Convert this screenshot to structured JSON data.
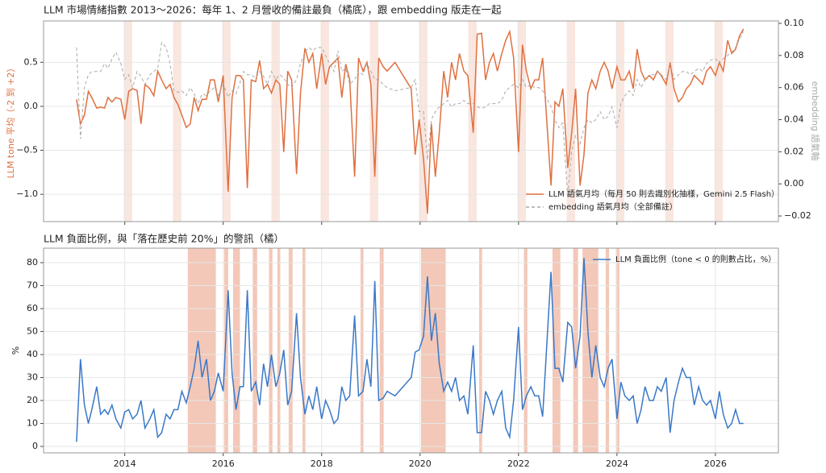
{
  "chart_data": [
    {
      "type": "line",
      "title": "LLM 市場情緒指數 2013～2026：每年 1、2 月營收的備註最負（橘底），跟 embedding 版走在一起",
      "ylabel": "LLM tone 平均（-2 到 +2）",
      "y2label": "embedding 語氣軸",
      "legend": "lower right",
      "grid": true,
      "span_color": "#f9e6df",
      "spans": [
        [
          2013.98,
          2014.15
        ],
        [
          2014.98,
          2015.15
        ],
        [
          2015.98,
          2016.15
        ],
        [
          2016.98,
          2017.15
        ],
        [
          2017.98,
          2018.15
        ],
        [
          2018.98,
          2019.15
        ],
        [
          2019.98,
          2020.15
        ],
        [
          2020.98,
          2021.15
        ],
        [
          2021.98,
          2022.15
        ],
        [
          2022.98,
          2023.15
        ],
        [
          2023.98,
          2024.15
        ],
        [
          2024.98,
          2025.15
        ],
        [
          2025.98,
          2026.15
        ]
      ],
      "xlim": [
        2012.35,
        2027.28
      ],
      "xticks": [
        2014,
        2016,
        2018,
        2020,
        2022,
        2024,
        2026
      ],
      "ylim": [
        -1.31,
        0.97
      ],
      "yticks": [
        {
          "value": -1,
          "label": "−1.0"
        },
        {
          "value": -0.5,
          "label": "−0.5"
        },
        {
          "value": 0,
          "label": "0.0"
        },
        {
          "value": 0.5,
          "label": "0.5"
        }
      ],
      "y2lim": [
        -0.0235,
        0.1015
      ],
      "y2ticks": [
        {
          "value": -0.02,
          "label": "−0.02"
        },
        {
          "value": 0,
          "label": "0.00"
        },
        {
          "value": 0.02,
          "label": "0.02"
        },
        {
          "value": 0.04,
          "label": "0.04"
        },
        {
          "value": 0.06,
          "label": "0.06"
        },
        {
          "value": 0.08,
          "label": "0.08"
        },
        {
          "value": 0.1,
          "label": "0.10"
        }
      ],
      "x": [
        2013.02,
        2013.1,
        2013.18,
        2013.26,
        2013.33,
        2013.43,
        2013.51,
        2013.59,
        2013.66,
        2013.74,
        2013.82,
        2013.92,
        2014.0,
        2014.08,
        2014.16,
        2014.25,
        2014.33,
        2014.41,
        2014.51,
        2014.59,
        2014.67,
        2014.75,
        2014.84,
        2014.92,
        2015.0,
        2015.08,
        2015.16,
        2015.25,
        2015.33,
        2015.41,
        2015.49,
        2015.57,
        2015.66,
        2015.74,
        2015.82,
        2015.9,
        2016.0,
        2016.1,
        2016.18,
        2016.26,
        2016.34,
        2016.41,
        2016.49,
        2016.57,
        2016.66,
        2016.74,
        2016.82,
        2016.9,
        2016.98,
        2017.07,
        2017.15,
        2017.23,
        2017.31,
        2017.39,
        2017.49,
        2017.57,
        2017.66,
        2017.74,
        2017.82,
        2017.9,
        2018.0,
        2018.08,
        2018.16,
        2018.25,
        2018.33,
        2018.41,
        2018.49,
        2018.57,
        2018.67,
        2018.75,
        2018.84,
        2018.92,
        2019.0,
        2019.08,
        2019.16,
        2019.25,
        2019.33,
        2019.49,
        2019.82,
        2019.9,
        2019.98,
        2020.07,
        2020.15,
        2020.23,
        2020.31,
        2020.39,
        2020.48,
        2020.56,
        2020.64,
        2020.72,
        2020.8,
        2020.89,
        2020.97,
        2021.08,
        2021.16,
        2021.25,
        2021.33,
        2021.41,
        2021.49,
        2021.57,
        2021.66,
        2021.74,
        2021.82,
        2021.9,
        2022.0,
        2022.08,
        2022.16,
        2022.25,
        2022.33,
        2022.41,
        2022.49,
        2022.66,
        2022.74,
        2022.82,
        2022.9,
        2023.0,
        2023.08,
        2023.16,
        2023.25,
        2023.33,
        2023.41,
        2023.49,
        2023.57,
        2023.66,
        2023.74,
        2023.82,
        2023.9,
        2024.0,
        2024.08,
        2024.16,
        2024.25,
        2024.33,
        2024.41,
        2024.49,
        2024.57,
        2024.66,
        2024.74,
        2024.82,
        2024.9,
        2025.0,
        2025.08,
        2025.16,
        2025.25,
        2025.33,
        2025.41,
        2025.49,
        2025.57,
        2025.66,
        2025.74,
        2025.82,
        2025.9,
        2026.0,
        2026.08,
        2026.16,
        2026.25,
        2026.33,
        2026.41,
        2026.49,
        2026.57
      ],
      "series": [
        {
          "name": "LLM 語氣月均（每月 50 則去識別化抽樣，Gemini 2.5 Flash）",
          "color": "#e07040",
          "linestyle": "solid",
          "values": [
            0.08,
            -0.2,
            -0.1,
            0.17,
            0.1,
            -0.02,
            -0.01,
            -0.02,
            0.1,
            0.05,
            0.1,
            0.08,
            -0.15,
            0.17,
            0.2,
            0.18,
            -0.2,
            0.25,
            0.2,
            0.12,
            0.4,
            0.3,
            0.2,
            0.25,
            0.1,
            0.02,
            -0.1,
            -0.24,
            -0.2,
            0.1,
            -0.05,
            0.08,
            0.08,
            0.3,
            0.3,
            0.05,
            0.35,
            -0.97,
            0.1,
            0.35,
            0.35,
            0.3,
            -0.93,
            0.3,
            0.28,
            0.52,
            0.2,
            0.25,
            0.15,
            0.3,
            0.25,
            -0.52,
            0.4,
            0.3,
            -0.77,
            0.15,
            0.66,
            0.5,
            0.6,
            0.2,
            0.6,
            0.25,
            0.45,
            0.5,
            0.55,
            0.1,
            0.48,
            0.3,
            -0.8,
            0.55,
            0.4,
            0.5,
            0.25,
            -0.8,
            0.55,
            0.45,
            0.4,
            0.5,
            0.2,
            -0.55,
            -0.15,
            -0.6,
            -1.22,
            -0.2,
            -0.8,
            -0.3,
            0.4,
            0.1,
            0.5,
            0.3,
            0.6,
            0.4,
            0.35,
            -0.3,
            0.82,
            0.83,
            0.3,
            0.5,
            0.6,
            0.4,
            0.6,
            0.75,
            0.85,
            0.55,
            -0.52,
            0.7,
            0.4,
            0.2,
            0.3,
            0.3,
            0.55,
            -0.9,
            0.05,
            0.0,
            0.2,
            -0.7,
            -0.3,
            0.2,
            -0.9,
            -0.55,
            0.15,
            0.3,
            0.2,
            0.4,
            0.5,
            0.4,
            0.2,
            0.45,
            0.3,
            0.3,
            0.4,
            0.2,
            0.65,
            0.4,
            0.3,
            0.35,
            0.3,
            0.4,
            0.35,
            0.25,
            0.5,
            0.2,
            0.05,
            0.1,
            0.2,
            0.25,
            0.35,
            0.3,
            0.25,
            0.4,
            0.45,
            0.35,
            0.5,
            0.4,
            0.75,
            0.6,
            0.65,
            0.8,
            0.88
          ]
        },
        {
          "name": "embedding 語氣月均（全部備註）",
          "color": "#aaaaaa",
          "linestyle": "dashed",
          "axis": "y2",
          "values": [
            0.085,
            0.028,
            0.06,
            0.068,
            0.07,
            0.07,
            0.07,
            0.075,
            0.072,
            0.078,
            0.082,
            0.075,
            0.065,
            0.068,
            0.06,
            0.07,
            0.067,
            0.062,
            0.068,
            0.07,
            0.072,
            0.088,
            0.085,
            0.075,
            0.058,
            0.057,
            0.058,
            0.055,
            0.06,
            0.056,
            0.05,
            0.056,
            0.055,
            0.058,
            0.06,
            0.055,
            0.062,
            0.054,
            0.058,
            0.056,
            0.063,
            0.07,
            0.068,
            0.068,
            0.066,
            0.07,
            0.067,
            0.062,
            0.07,
            0.065,
            0.068,
            0.066,
            0.062,
            0.06,
            0.065,
            0.075,
            0.082,
            0.085,
            0.083,
            0.085,
            0.085,
            0.08,
            0.075,
            0.07,
            0.083,
            0.07,
            0.072,
            0.062,
            0.065,
            0.07,
            0.068,
            0.075,
            0.07,
            0.065,
            0.065,
            0.062,
            0.06,
            0.058,
            0.06,
            0.065,
            0.045,
            0.045,
            0.015,
            0.04,
            0.045,
            0.048,
            0.05,
            0.052,
            0.048,
            0.05,
            0.05,
            0.052,
            0.05,
            0.05,
            0.048,
            0.047,
            0.048,
            0.05,
            0.05,
            0.05,
            0.052,
            0.058,
            0.06,
            0.062,
            0.06,
            0.065,
            0.06,
            0.062,
            0.06,
            0.06,
            0.058,
            0.048,
            0.04,
            0.035,
            0.038,
            -0.008,
            0.02,
            0.03,
            0.025,
            0.035,
            0.04,
            0.038,
            0.04,
            0.045,
            0.04,
            0.042,
            0.048,
            0.035,
            0.05,
            0.055,
            0.058,
            0.055,
            0.065,
            0.06,
            0.065,
            0.068,
            0.068,
            0.07,
            0.068,
            0.065,
            0.075,
            0.065,
            0.068,
            0.07,
            0.07,
            0.068,
            0.07,
            0.072,
            0.07,
            0.075,
            0.077,
            0.078,
            0.075,
            0.078,
            0.08,
            0.082,
            0.085,
            0.09,
            0.095
          ]
        }
      ]
    },
    {
      "type": "line",
      "title": "LLM 負面比例，與「落在歷史前 20%」的警訊（橘）",
      "ylabel": "%",
      "legend": "upper right",
      "grid": true,
      "span_color": "#f3c8b8",
      "spans": [
        [
          2015.28,
          2015.85
        ],
        [
          2016.02,
          2016.1
        ],
        [
          2016.2,
          2016.34
        ],
        [
          2016.6,
          2016.69
        ],
        [
          2016.93,
          2017.0
        ],
        [
          2017.1,
          2017.16
        ],
        [
          2017.33,
          2017.41
        ],
        [
          2017.61,
          2017.67
        ],
        [
          2018.79,
          2018.85
        ],
        [
          2019.18,
          2019.26
        ],
        [
          2020.02,
          2020.52
        ],
        [
          2021.2,
          2021.26
        ],
        [
          2022.11,
          2022.18
        ],
        [
          2022.69,
          2022.85
        ],
        [
          2023.11,
          2023.21
        ],
        [
          2023.3,
          2023.62
        ],
        [
          2023.77,
          2023.84
        ],
        [
          2023.98,
          2024.05
        ]
      ],
      "xlim": [
        2012.35,
        2027.28
      ],
      "xticks": [
        2014,
        2016,
        2018,
        2020,
        2022,
        2024,
        2026
      ],
      "ylim": [
        -2.8,
        86.3
      ],
      "yticks": [
        0,
        10,
        20,
        30,
        40,
        50,
        60,
        70,
        80
      ],
      "x": [
        2013.02,
        2013.1,
        2013.18,
        2013.26,
        2013.33,
        2013.43,
        2013.51,
        2013.59,
        2013.66,
        2013.74,
        2013.82,
        2013.92,
        2014.0,
        2014.08,
        2014.16,
        2014.25,
        2014.33,
        2014.41,
        2014.51,
        2014.59,
        2014.67,
        2014.75,
        2014.84,
        2014.92,
        2015.0,
        2015.08,
        2015.16,
        2015.25,
        2015.33,
        2015.41,
        2015.49,
        2015.57,
        2015.66,
        2015.74,
        2015.82,
        2015.9,
        2016.0,
        2016.1,
        2016.18,
        2016.26,
        2016.34,
        2016.41,
        2016.49,
        2016.57,
        2016.66,
        2016.74,
        2016.82,
        2016.9,
        2016.98,
        2017.07,
        2017.15,
        2017.23,
        2017.31,
        2017.39,
        2017.49,
        2017.57,
        2017.66,
        2017.74,
        2017.82,
        2017.9,
        2018.0,
        2018.08,
        2018.16,
        2018.25,
        2018.33,
        2018.41,
        2018.49,
        2018.57,
        2018.67,
        2018.75,
        2018.84,
        2018.92,
        2019.0,
        2019.08,
        2019.16,
        2019.25,
        2019.33,
        2019.49,
        2019.82,
        2019.9,
        2019.98,
        2020.07,
        2020.15,
        2020.23,
        2020.31,
        2020.39,
        2020.48,
        2020.56,
        2020.64,
        2020.72,
        2020.8,
        2020.89,
        2020.97,
        2021.08,
        2021.16,
        2021.25,
        2021.33,
        2021.41,
        2021.49,
        2021.57,
        2021.66,
        2021.74,
        2021.82,
        2021.9,
        2022.0,
        2022.08,
        2022.16,
        2022.25,
        2022.33,
        2022.41,
        2022.49,
        2022.66,
        2022.74,
        2022.82,
        2022.9,
        2023.0,
        2023.08,
        2023.16,
        2023.25,
        2023.33,
        2023.41,
        2023.49,
        2023.57,
        2023.66,
        2023.74,
        2023.82,
        2023.9,
        2024.0,
        2024.08,
        2024.16,
        2024.25,
        2024.33,
        2024.41,
        2024.49,
        2024.57,
        2024.66,
        2024.74,
        2024.82,
        2024.9,
        2025.0,
        2025.08,
        2025.16,
        2025.25,
        2025.33,
        2025.41,
        2025.49,
        2025.57,
        2025.66,
        2025.74,
        2025.82,
        2025.9,
        2026.0,
        2026.08,
        2026.16,
        2026.25,
        2026.33,
        2026.41,
        2026.49,
        2026.57
      ],
      "series": [
        {
          "name": "LLM 負面比例（tone < 0 的則數占比，%）",
          "color": "#3a78c8",
          "linestyle": "solid",
          "values": [
            2,
            38,
            18,
            10,
            16,
            26,
            14,
            16,
            14,
            18,
            12,
            8,
            15,
            16,
            12,
            14,
            20,
            8,
            12,
            16,
            4,
            6,
            14,
            12,
            16,
            16,
            24,
            19,
            26,
            34,
            46,
            30,
            38,
            20,
            24,
            32,
            24,
            68,
            32,
            16,
            26,
            26,
            68,
            24,
            28,
            18,
            36,
            26,
            40,
            26,
            32,
            42,
            18,
            24,
            58,
            30,
            14,
            22,
            16,
            26,
            12,
            20,
            16,
            10,
            12,
            26,
            20,
            22,
            57,
            22,
            24,
            38,
            26,
            72,
            20,
            21,
            24,
            22,
            30,
            41,
            42,
            48,
            74,
            46,
            58,
            36,
            24,
            28,
            24,
            30,
            20,
            22,
            14,
            44,
            6,
            6,
            24,
            20,
            14,
            20,
            24,
            8,
            4,
            20,
            52,
            16,
            22,
            26,
            22,
            22,
            13,
            76,
            34,
            34,
            28,
            54,
            52,
            34,
            48,
            82,
            50,
            30,
            44,
            30,
            26,
            34,
            38,
            12,
            28,
            22,
            20,
            22,
            10,
            16,
            26,
            20,
            20,
            26,
            24,
            30,
            6,
            20,
            28,
            34,
            30,
            30,
            18,
            26,
            20,
            18,
            20,
            12,
            24,
            14,
            8,
            10,
            16,
            10,
            10
          ]
        }
      ]
    }
  ]
}
